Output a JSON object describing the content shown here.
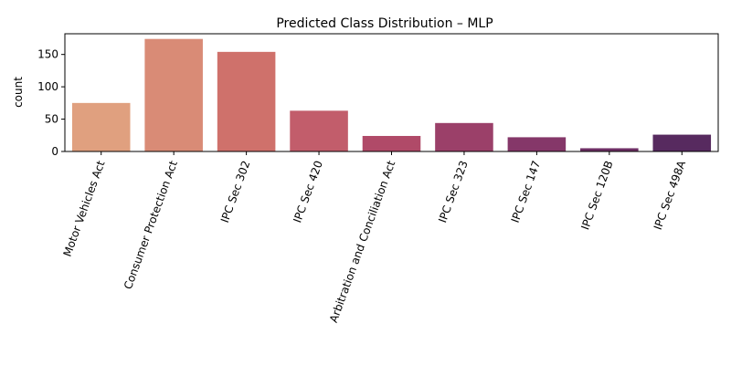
{
  "chart_data": {
    "type": "bar",
    "title": "Predicted Class Distribution – MLP",
    "xlabel": "",
    "ylabel": "count",
    "categories": [
      "Motor Vehicles Act",
      "Consumer Protection Act",
      "IPC Sec 302",
      "IPC Sec 420",
      "Arbitration and Conciliation Act",
      "IPC Sec 323",
      "IPC Sec 147",
      "IPC Sec 120B",
      "IPC Sec 498A"
    ],
    "values": [
      75,
      174,
      154,
      63,
      24,
      44,
      22,
      5,
      26
    ],
    "colors": [
      "#e0a07f",
      "#d98b76",
      "#cf716b",
      "#c25d6b",
      "#b04a68",
      "#9b4069",
      "#853769",
      "#6e2f65",
      "#572a5f"
    ],
    "ylim": [
      0,
      182
    ],
    "yticks": [
      0,
      50,
      100,
      150
    ],
    "grid": false,
    "legend": "none"
  }
}
